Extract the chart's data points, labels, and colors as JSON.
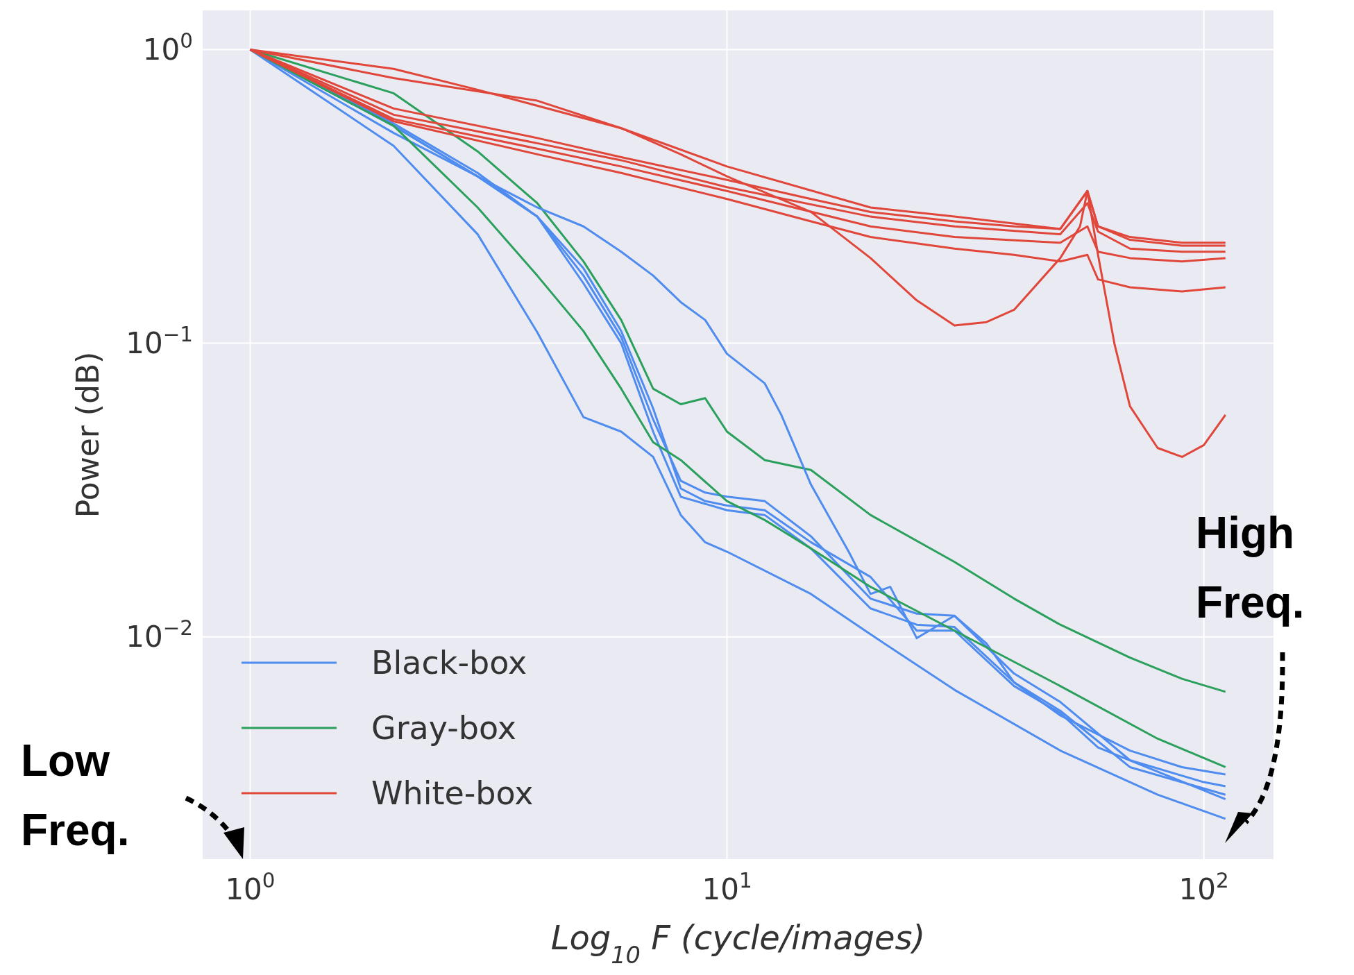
{
  "chart_data": {
    "type": "line",
    "xlabel": "Log$_{10}$ F (cycle/images)",
    "ylabel": "Power (dB)",
    "log": "xy",
    "grid": true,
    "legend": "bottom left",
    "line_style": "solid",
    "xlim": [
      0.795,
      140
    ],
    "ylim": [
      0.00175,
      1.36
    ],
    "xticks": [
      {
        "value": 1,
        "label": "10$^{0}$"
      },
      {
        "value": 10,
        "label": "10$^{1}$"
      },
      {
        "value": 100,
        "label": "10$^{2}$"
      }
    ],
    "yticks": [
      {
        "value": 0.01,
        "label": "10$^{−2}$"
      },
      {
        "value": 0.1,
        "label": "10$^{−1}$"
      },
      {
        "value": 1,
        "label": "10$^{0}$"
      }
    ],
    "series": [
      {
        "name": "Black-box",
        "color": "#4f8cf0",
        "x": [
          1,
          2,
          3,
          4,
          5,
          6,
          7,
          8,
          9,
          10,
          15,
          20,
          30,
          50,
          80,
          111
        ],
        "values": [
          1,
          0.47,
          0.235,
          0.109,
          0.056,
          0.05,
          0.041,
          0.026,
          0.021,
          0.0195,
          0.014,
          0.0102,
          0.0066,
          0.0041,
          0.0029,
          0.0024
        ]
      },
      {
        "name": "Gray-box",
        "color": "#2aa05c",
        "x": [
          1,
          2,
          3,
          4,
          5,
          6,
          7,
          8,
          9,
          10,
          12,
          15,
          20,
          30,
          40,
          50,
          70,
          90,
          111
        ],
        "values": [
          1,
          0.71,
          0.45,
          0.3,
          0.19,
          0.12,
          0.07,
          0.062,
          0.065,
          0.05,
          0.04,
          0.037,
          0.026,
          0.018,
          0.0135,
          0.011,
          0.0085,
          0.0072,
          0.0065
        ]
      },
      {
        "name": "White-box",
        "color": "#e0473a",
        "x": [
          1,
          2,
          3,
          6,
          10,
          20,
          30,
          50,
          57,
          60,
          70,
          90,
          111
        ],
        "values": [
          1,
          0.86,
          0.73,
          0.54,
          0.4,
          0.29,
          0.27,
          0.245,
          0.33,
          0.25,
          0.23,
          0.22,
          0.22
        ]
      },
      {
        "color": "#4f8cf0",
        "x": [
          1,
          2,
          3,
          4,
          5,
          6,
          7,
          8,
          9,
          10,
          12,
          13,
          15,
          18,
          20,
          22,
          25,
          30,
          35,
          40,
          50,
          70,
          90,
          111
        ],
        "values": [
          1,
          0.55,
          0.37,
          0.29,
          0.25,
          0.205,
          0.17,
          0.138,
          0.12,
          0.092,
          0.073,
          0.057,
          0.033,
          0.0195,
          0.014,
          0.0148,
          0.0099,
          0.0118,
          0.0095,
          0.007,
          0.0054,
          0.0041,
          0.0036,
          0.0034
        ]
      },
      {
        "color": "#4f8cf0",
        "x": [
          1,
          2,
          3,
          4,
          5,
          6,
          7,
          8,
          9,
          10,
          12,
          15,
          20,
          25,
          30,
          40,
          50,
          70,
          100,
          111
        ],
        "values": [
          1,
          0.56,
          0.38,
          0.27,
          0.17,
          0.105,
          0.055,
          0.034,
          0.031,
          0.03,
          0.029,
          0.022,
          0.0135,
          0.012,
          0.0118,
          0.0075,
          0.006,
          0.0038,
          0.0032,
          0.0031
        ]
      },
      {
        "color": "#4f8cf0",
        "x": [
          1,
          2,
          3,
          4,
          5,
          6,
          7,
          8,
          10,
          12,
          15,
          20,
          25,
          30,
          40,
          50,
          70,
          111
        ],
        "values": [
          1,
          0.55,
          0.37,
          0.27,
          0.16,
          0.1,
          0.05,
          0.03,
          0.027,
          0.026,
          0.02,
          0.0125,
          0.011,
          0.0108,
          0.007,
          0.0056,
          0.0036,
          0.0029
        ]
      },
      {
        "color": "#4f8cf0",
        "x": [
          1,
          2,
          3,
          4,
          5,
          6,
          7,
          8,
          9,
          10,
          12,
          15,
          20,
          25,
          30,
          40,
          50,
          60,
          111
        ],
        "values": [
          1,
          0.52,
          0.37,
          0.27,
          0.18,
          0.11,
          0.06,
          0.032,
          0.029,
          0.028,
          0.027,
          0.021,
          0.016,
          0.0105,
          0.0105,
          0.0068,
          0.0055,
          0.0042,
          0.0028
        ]
      },
      {
        "color": "#2aa05c",
        "x": [
          1,
          2,
          3,
          4,
          5,
          6,
          7,
          8,
          10,
          12,
          15,
          20,
          30,
          50,
          80,
          111
        ],
        "values": [
          1,
          0.55,
          0.29,
          0.17,
          0.11,
          0.07,
          0.046,
          0.04,
          0.029,
          0.025,
          0.02,
          0.0148,
          0.0105,
          0.0068,
          0.0045,
          0.0036
        ]
      },
      {
        "color": "#e0473a",
        "x": [
          1,
          2,
          4,
          6,
          8,
          10,
          15,
          20,
          25,
          30,
          35,
          40,
          50,
          55,
          57,
          60,
          65,
          70,
          80,
          90,
          100,
          111
        ],
        "values": [
          1,
          0.8,
          0.67,
          0.54,
          0.44,
          0.37,
          0.28,
          0.195,
          0.14,
          0.115,
          0.118,
          0.13,
          0.195,
          0.25,
          0.33,
          0.2,
          0.099,
          0.061,
          0.044,
          0.041,
          0.045,
          0.057
        ]
      },
      {
        "color": "#e0473a",
        "x": [
          1,
          2,
          4,
          6,
          10,
          15,
          20,
          30,
          40,
          50,
          57,
          60,
          70,
          90,
          111
        ],
        "values": [
          1,
          0.63,
          0.5,
          0.43,
          0.36,
          0.31,
          0.28,
          0.26,
          0.25,
          0.245,
          0.33,
          0.25,
          0.225,
          0.215,
          0.215
        ]
      },
      {
        "color": "#e0473a",
        "x": [
          1,
          2,
          4,
          6,
          10,
          20,
          30,
          50,
          57,
          60,
          70,
          90,
          111
        ],
        "values": [
          1,
          0.6,
          0.48,
          0.42,
          0.34,
          0.27,
          0.25,
          0.235,
          0.3,
          0.24,
          0.21,
          0.205,
          0.205
        ]
      },
      {
        "color": "#e0473a",
        "x": [
          1,
          2,
          4,
          6,
          10,
          20,
          30,
          50,
          57,
          60,
          70,
          90,
          111
        ],
        "values": [
          1,
          0.58,
          0.46,
          0.4,
          0.33,
          0.25,
          0.23,
          0.22,
          0.25,
          0.205,
          0.195,
          0.19,
          0.195
        ]
      },
      {
        "color": "#e0473a",
        "x": [
          1,
          2,
          4,
          6,
          10,
          15,
          20,
          30,
          40,
          50,
          57,
          60,
          70,
          90,
          111
        ],
        "values": [
          1,
          0.57,
          0.44,
          0.38,
          0.31,
          0.26,
          0.23,
          0.21,
          0.2,
          0.19,
          0.2,
          0.165,
          0.155,
          0.15,
          0.155
        ]
      }
    ],
    "annotations": [
      "Low Freq.",
      "High Freq."
    ]
  }
}
